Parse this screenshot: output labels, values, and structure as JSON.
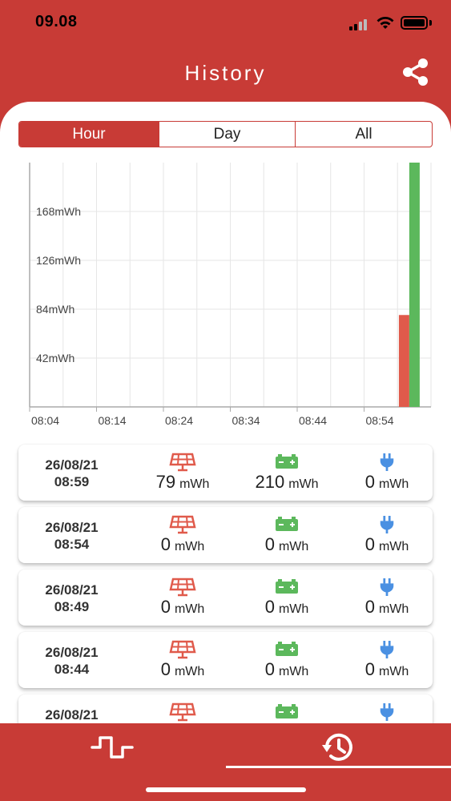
{
  "status_bar": {
    "time": "09.08"
  },
  "header": {
    "title": "History"
  },
  "tabs": [
    {
      "label": "Hour",
      "selected": true
    },
    {
      "label": "Day",
      "selected": false
    },
    {
      "label": "All",
      "selected": false
    }
  ],
  "colors": {
    "accent": "#c83b36",
    "solar": "#e05a4b",
    "battery": "#5cb85c",
    "grid": "#4a90e2"
  },
  "chart_data": {
    "type": "bar",
    "ylabel_unit": "mWh",
    "y_ticks": [
      "42mWh",
      "84mWh",
      "126mWh",
      "168mWh"
    ],
    "y_tick_values": [
      42,
      84,
      126,
      168
    ],
    "x_ticks": [
      "08:04",
      "08:14",
      "08:24",
      "08:34",
      "08:44",
      "08:54"
    ],
    "ylim": [
      0,
      210
    ],
    "grid": true,
    "series": [
      {
        "color": "#e05a4b",
        "values": [
          79
        ]
      },
      {
        "color": "#5cb85c",
        "values": [
          210
        ]
      }
    ],
    "categories": [
      "08:59"
    ]
  },
  "records": [
    {
      "date": "26/08/21",
      "time": "08:59",
      "solar": "79",
      "battery": "210",
      "grid": "0",
      "unit": "mWh"
    },
    {
      "date": "26/08/21",
      "time": "08:54",
      "solar": "0",
      "battery": "0",
      "grid": "0",
      "unit": "mWh"
    },
    {
      "date": "26/08/21",
      "time": "08:49",
      "solar": "0",
      "battery": "0",
      "grid": "0",
      "unit": "mWh"
    },
    {
      "date": "26/08/21",
      "time": "08:44",
      "solar": "0",
      "battery": "0",
      "grid": "0",
      "unit": "mWh"
    },
    {
      "date": "26/08/21",
      "time": "",
      "solar": "",
      "battery": "",
      "grid": "",
      "unit": ""
    }
  ],
  "icons": {
    "share": "share-icon",
    "solar": "solar-panel-icon",
    "battery": "battery-icon",
    "grid": "plug-icon",
    "live": "pulse-icon",
    "history": "history-icon"
  }
}
